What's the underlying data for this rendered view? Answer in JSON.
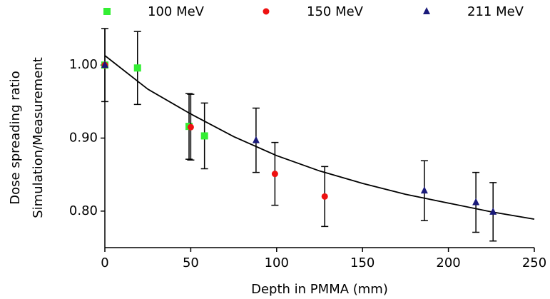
{
  "chart_data": {
    "type": "scatter",
    "x_label": "Depth in PMMA (mm)",
    "y_label": [
      "Dose spreading ratio",
      "Simulation/Measurement"
    ],
    "xlim": [
      0,
      250
    ],
    "xticks": [
      0,
      50,
      100,
      150,
      200,
      250
    ],
    "ylim": [
      0.75,
      1.05
    ],
    "yticks": [
      {
        "value": 0.8,
        "label": "0.80"
      },
      {
        "value": 0.9,
        "label": "0.90"
      },
      {
        "value": 1.0,
        "label": "1.00"
      }
    ],
    "series": [
      {
        "name": "100 MeV",
        "color": "#33ee33",
        "marker": "square",
        "x": [
          0,
          19,
          49,
          58
        ],
        "values": [
          1.0,
          0.996,
          0.916,
          0.903
        ],
        "errors": [
          0.05,
          0.05,
          0.045,
          0.045
        ]
      },
      {
        "name": "150 MeV",
        "color": "#ee1111",
        "marker": "circle",
        "x": [
          0,
          50,
          99,
          128
        ],
        "values": [
          1.0,
          0.915,
          0.851,
          0.82
        ],
        "errors": [
          null,
          0.045,
          0.043,
          0.041
        ]
      },
      {
        "name": "211 MeV",
        "color": "#1a1a7a",
        "marker": "triangle",
        "x": [
          0,
          88,
          186,
          216,
          226
        ],
        "values": [
          1.0,
          0.897,
          0.828,
          0.812,
          0.799
        ],
        "errors": [
          null,
          0.044,
          0.041,
          0.041,
          0.04
        ]
      }
    ],
    "fit": {
      "color": "#000000",
      "x": [
        0,
        25,
        50,
        75,
        100,
        125,
        150,
        175,
        200,
        225,
        250
      ],
      "values": [
        1.013,
        0.967,
        0.933,
        0.902,
        0.876,
        0.855,
        0.838,
        0.823,
        0.811,
        0.799,
        0.789
      ]
    }
  }
}
